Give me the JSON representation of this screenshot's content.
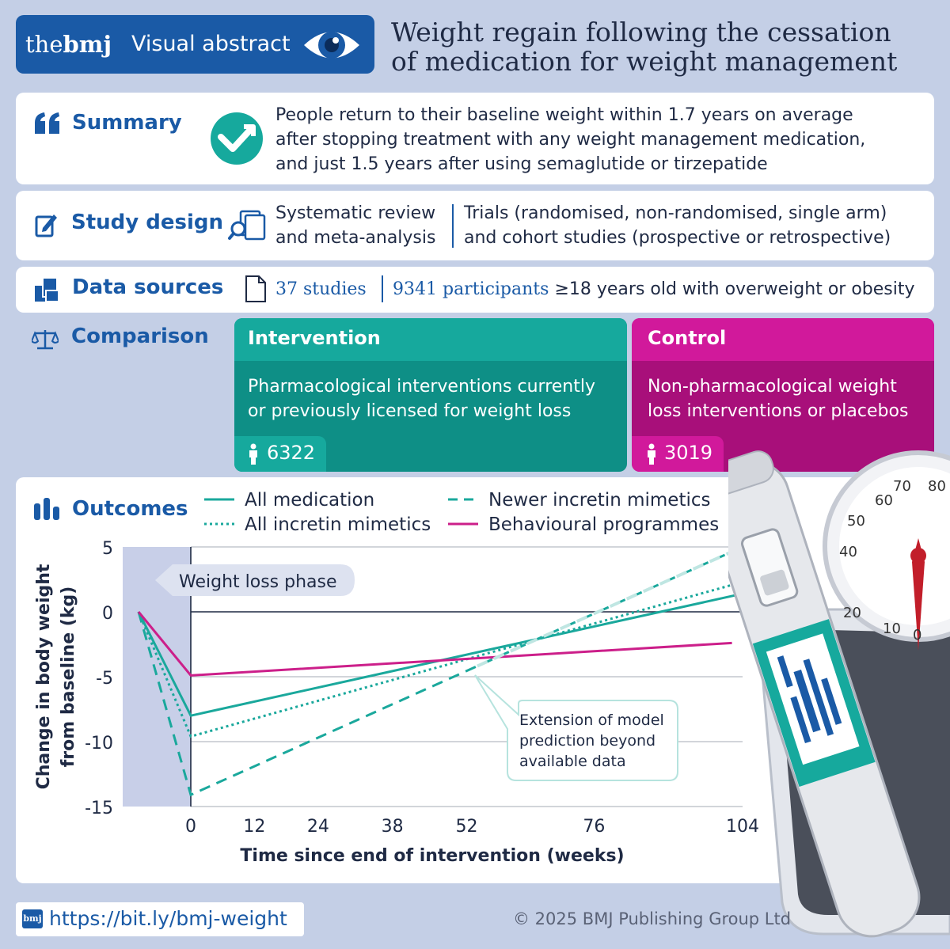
{
  "header": {
    "brand_the": "the",
    "brand_bmj": "bmj",
    "badge_label": "Visual abstract",
    "title_line1": "Weight regain following the cessation",
    "title_line2": "of medication for weight management"
  },
  "summary": {
    "label": "Summary",
    "lines": [
      "People return to their baseline weight within 1.7 years on average",
      "after stopping treatment with any weight management medication,",
      "and just 1.5 years after using semaglutide or tirzepatide"
    ]
  },
  "study_design": {
    "label": "Study design",
    "left_lines": [
      "Systematic review",
      "and meta-analysis"
    ],
    "right_lines": [
      "Trials (randomised, non-randomised, single arm)",
      "and cohort studies (prospective or retrospective)"
    ]
  },
  "data_sources": {
    "label": "Data sources",
    "studies": "37 studies",
    "participants": "9341 participants",
    "suffix": "≥18 years old with overweight or obesity"
  },
  "comparison": {
    "label": "Comparison",
    "intervention": {
      "title": "Intervention",
      "lines": [
        "Pharmacological interventions currently",
        "or previously licensed for weight loss"
      ],
      "count": "6322"
    },
    "control": {
      "title": "Control",
      "lines": [
        "Non-pharmacological weight",
        "loss interventions or placebos"
      ],
      "count": "3019"
    }
  },
  "outcomes": {
    "label": "Outcomes",
    "phase_label": "Weight loss phase",
    "annotation_lines": [
      "Extension of model",
      "prediction beyond",
      "available data"
    ]
  },
  "chart_data": {
    "type": "line",
    "xlabel": "Time since end of intervention (weeks)",
    "ylabel_lines": [
      "Change in body weight",
      "from baseline (kg)"
    ],
    "x_ticks": [
      0,
      12,
      24,
      38,
      52,
      76,
      104
    ],
    "y_ticks": [
      5,
      0,
      -5,
      -10,
      -15
    ],
    "ylim": [
      -15,
      5
    ],
    "xlim": [
      -10,
      104
    ],
    "legend_placement": "top",
    "series": [
      {
        "name": "All medication",
        "style": "solid",
        "color": "#1aa89c",
        "x": [
          -10,
          0,
          104
        ],
        "y": [
          0,
          -8.0,
          1.4
        ]
      },
      {
        "name": "All incretin mimetics",
        "style": "dotted",
        "color": "#1aa89c",
        "x": [
          -10,
          0,
          104
        ],
        "y": [
          0,
          -9.6,
          2.3
        ]
      },
      {
        "name": "Newer incretin mimetics",
        "style": "dashed",
        "color": "#1aa89c",
        "x": [
          -10,
          0,
          104
        ],
        "y": [
          0,
          -14.1,
          5.0
        ]
      },
      {
        "name": "Behavioural programmes",
        "style": "solid",
        "color": "#cc1f8a",
        "x": [
          -10,
          0,
          102
        ],
        "y": [
          0,
          -4.9,
          -2.4
        ]
      }
    ]
  },
  "footer": {
    "url": "https://bit.ly/bmj-weight",
    "badge": "bmj",
    "copyright": "© 2025 BMJ Publishing Group Ltd"
  },
  "colors": {
    "bmj_blue": "#1a5aa6",
    "teal": "#16a99d",
    "teal_dark": "#0e8f86",
    "magenta": "#d1199b",
    "magenta_dark": "#a80f7a",
    "background": "#c4cfe6"
  },
  "icons": {
    "eye": "eye-icon",
    "quote": "quote-icon",
    "summary_badge": "checkmark-arrow-icon",
    "pencil": "edit-icon",
    "documents": "documents-search-icon",
    "data": "data-files-icon",
    "file": "file-icon",
    "scales": "balance-scales-icon",
    "bar_chart": "bar-chart-icon",
    "person": "person-icon",
    "pen": "injection-pen-illustration",
    "weighing_scale": "weighing-scale-illustration"
  }
}
